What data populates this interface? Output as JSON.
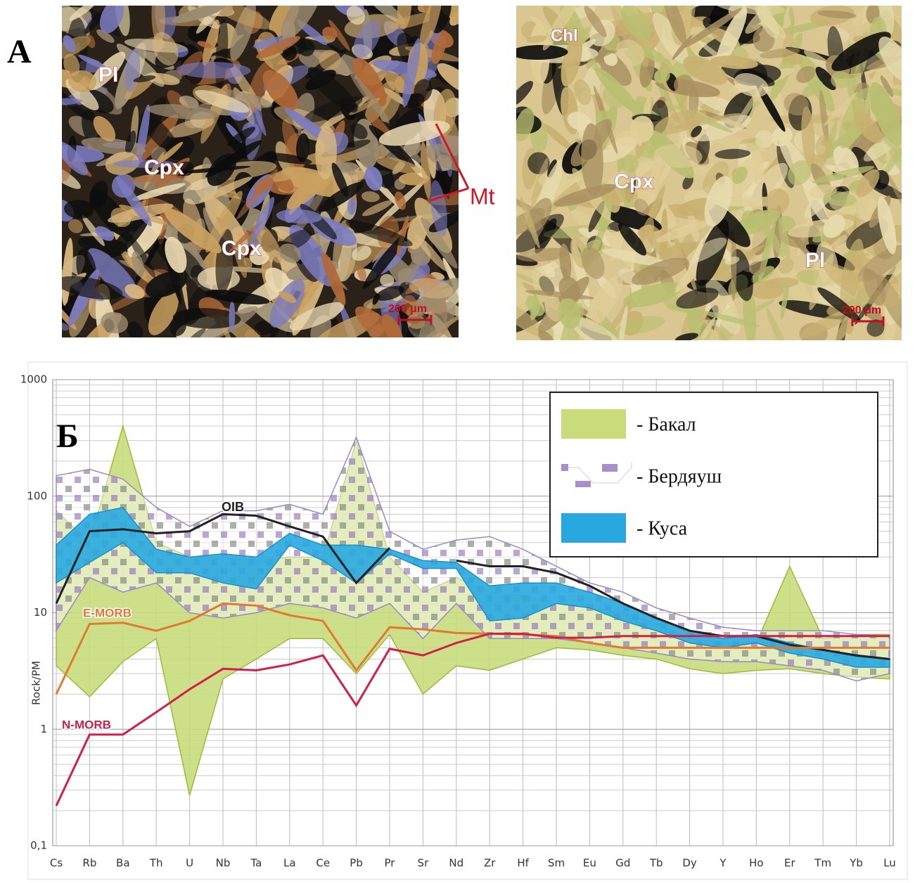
{
  "panel_a": {
    "label": "А",
    "left_photo": {
      "labels": [
        "Pl",
        "Cpx",
        "Cpx",
        "Mt"
      ],
      "scale": "200 μm"
    },
    "right_photo": {
      "labels": [
        "Chl",
        "Cpx",
        "Pl"
      ],
      "scale": "200 μm"
    }
  },
  "chart_data": {
    "type": "line",
    "panel_label": "Б",
    "y_label": "Rock/PM",
    "log_y": true,
    "grid": true,
    "legend": "upper right",
    "categories": [
      "Cs",
      "Rb",
      "Ba",
      "Th",
      "U",
      "Nb",
      "Ta",
      "La",
      "Ce",
      "Pb",
      "Pr",
      "Sr",
      "Nd",
      "Zr",
      "Hf",
      "Sm",
      "Eu",
      "Gd",
      "Tb",
      "Dy",
      "Y",
      "Ho",
      "Er",
      "Tm",
      "Yb",
      "Lu"
    ],
    "ylim": [
      0.1,
      1000
    ],
    "yticks": [
      {
        "value": 0.1,
        "label": "0,1"
      },
      1,
      10,
      100,
      1000
    ],
    "series": [
      {
        "name": "- Бакал",
        "type": "band",
        "color": "#c8dc7c",
        "low": [
          3.5,
          1.9,
          3.8,
          6,
          0.27,
          2.7,
          4,
          6,
          6,
          3,
          6.5,
          2,
          3.5,
          3.2,
          4,
          5,
          4.8,
          4.3,
          4,
          3.3,
          3,
          3.2,
          3.3,
          3,
          2.8,
          2.7
        ],
        "high": [
          75,
          40,
          400,
          40,
          30,
          30,
          28,
          30,
          30,
          300,
          30,
          15,
          20,
          15,
          14,
          12,
          11,
          10,
          8,
          6,
          5.5,
          5.5,
          25,
          6,
          6.5,
          6.5
        ]
      },
      {
        "name": "- Бердяуш",
        "type": "band",
        "color": "#a98fc8",
        "low": [
          7,
          20,
          15,
          18,
          10,
          9,
          10,
          12,
          11,
          9,
          12,
          6,
          12,
          6,
          6,
          6,
          5.5,
          5,
          4.5,
          4,
          3.8,
          3.8,
          3.5,
          3.2,
          2.6,
          3
        ],
        "high": [
          150,
          170,
          140,
          80,
          55,
          75,
          75,
          85,
          70,
          320,
          50,
          35,
          42,
          45,
          35,
          25,
          18,
          15,
          11,
          9,
          7.5,
          7,
          7,
          7,
          6.5,
          6.3
        ]
      },
      {
        "name": "- Куса",
        "type": "band",
        "color": "#29a8e0",
        "low": [
          18,
          27,
          40,
          22,
          22,
          18,
          16,
          38,
          28,
          18,
          32,
          24,
          24,
          8.5,
          9,
          12,
          11,
          8.5,
          7,
          5.5,
          5,
          5.5,
          4.5,
          4,
          3.4,
          3.4
        ],
        "high": [
          38,
          70,
          80,
          35,
          30,
          32,
          30,
          48,
          38,
          38,
          35,
          28,
          27,
          17,
          18,
          18,
          15,
          12,
          9,
          7,
          6,
          6.5,
          5.5,
          4.8,
          4.2,
          4
        ]
      },
      {
        "name": "OIB",
        "type": "line",
        "color": "#222222",
        "values": [
          12,
          50,
          52,
          48,
          50,
          70,
          68,
          55,
          45,
          18,
          36,
          null,
          28,
          25,
          25,
          22,
          17,
          12,
          9,
          7,
          6.3,
          6.3,
          5.3,
          4.8,
          4.3,
          4
        ]
      },
      {
        "name": "E-MORB",
        "type": "line",
        "color": "#e07a30",
        "values": [
          2,
          8,
          8.2,
          7,
          8.5,
          12,
          11.5,
          9.5,
          8.5,
          3.2,
          7.5,
          7.2,
          6.7,
          6.6,
          6.5,
          6.3,
          5.5,
          5,
          5,
          5,
          5,
          5,
          5,
          5,
          5,
          5
        ]
      },
      {
        "name": "N-MORB",
        "type": "line",
        "color": "#d0204a",
        "values": [
          0.22,
          0.9,
          0.9,
          1.4,
          2.2,
          3.3,
          3.2,
          3.6,
          4.3,
          1.6,
          4.9,
          4.3,
          5.5,
          6.6,
          6.6,
          6.1,
          6.1,
          6.3,
          6.3,
          6.3,
          6.3,
          6.3,
          6.3,
          6.3,
          6.3,
          6.3
        ]
      }
    ]
  }
}
